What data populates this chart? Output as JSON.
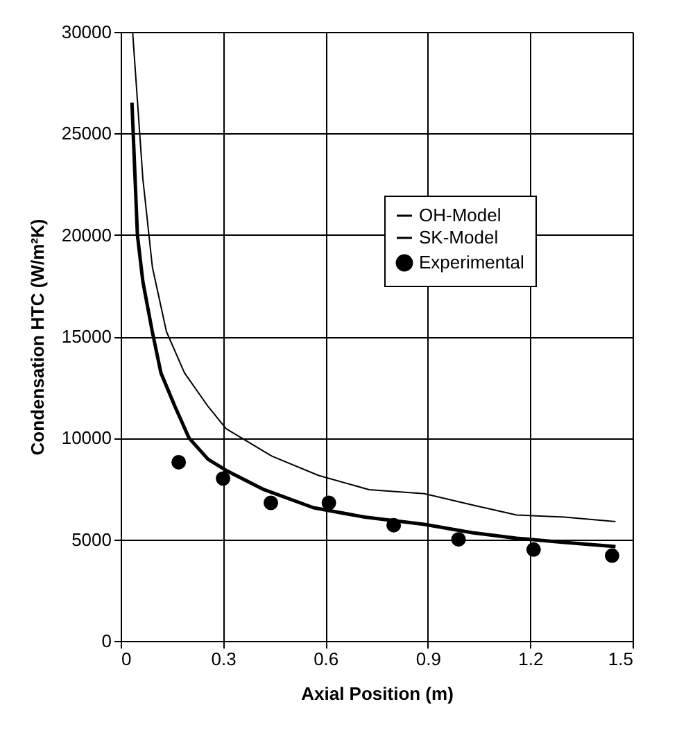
{
  "chart_data": {
    "type": "line",
    "xlabel": "Axial Position (m)",
    "ylabel": "Condensation HTC (W/m²K)",
    "xlim": [
      0,
      1.5
    ],
    "xticks": [
      0,
      0.3,
      0.6,
      0.9,
      1.2,
      1.5
    ],
    "ylim": [
      0,
      30000
    ],
    "yticks": [
      0,
      5000,
      10000,
      15000,
      20000,
      25000,
      30000
    ],
    "grid": true,
    "legend": "right",
    "marker": "none",
    "line_style": "solid",
    "series": [
      {
        "name": "OH-Model",
        "type": "line",
        "color": "#000000",
        "x": [
          0.035,
          0.065,
          0.093,
          0.134,
          0.187,
          0.256,
          0.309,
          0.443,
          0.58,
          0.728,
          0.89,
          1.03,
          1.16,
          1.3,
          1.45
        ],
        "values": [
          30000,
          22760,
          18400,
          15240,
          13200,
          11550,
          10450,
          9100,
          8150,
          7450,
          7250,
          6700,
          6200,
          6100,
          5880
        ]
      },
      {
        "name": "SK-Model",
        "type": "line",
        "color": "#000000",
        "x": [
          0.033,
          0.049,
          0.065,
          0.093,
          0.118,
          0.159,
          0.2,
          0.256,
          0.309,
          0.42,
          0.565,
          0.715,
          0.89,
          1.03,
          1.16,
          1.3,
          1.45
        ],
        "values": [
          26520,
          20000,
          17700,
          15200,
          13200,
          11550,
          10000,
          8950,
          8400,
          7450,
          6560,
          6100,
          5740,
          5330,
          5060,
          4850,
          4650
        ]
      },
      {
        "name": "Experimental",
        "type": "scatter",
        "marker": "circle",
        "color": "#000000",
        "x": [
          0.17,
          0.3,
          0.44,
          0.61,
          0.8,
          0.99,
          1.21,
          1.44
        ],
        "values": [
          8800,
          8000,
          6800,
          6800,
          5700,
          5000,
          4500,
          4200
        ]
      }
    ]
  }
}
